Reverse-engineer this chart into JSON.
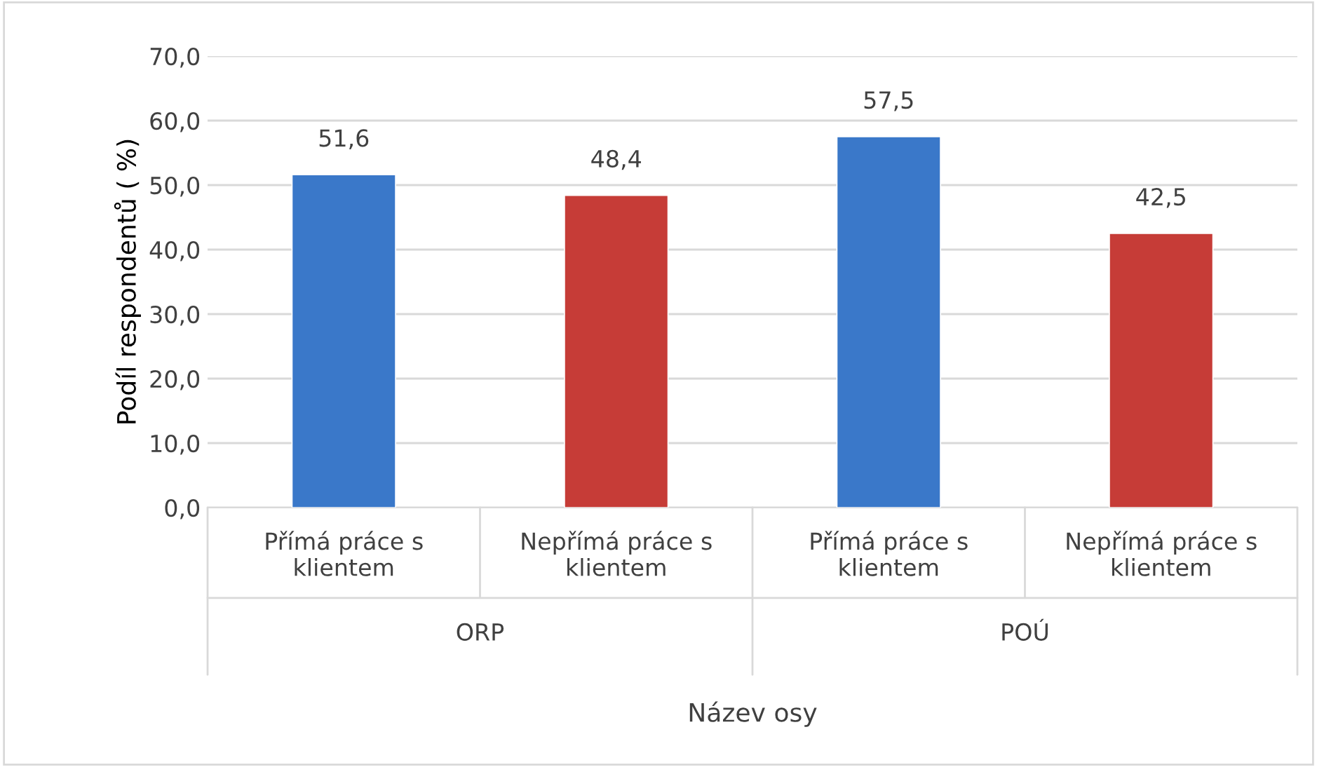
{
  "chart_data": {
    "type": "bar",
    "categories": [
      "Přímá práce s\nklientem",
      "Nepřímá práce s\nklientem",
      "Přímá práce s\nklientem",
      "Nepřímá práce s\nklientem"
    ],
    "values": [
      51.6,
      48.4,
      57.5,
      42.5
    ],
    "colors": [
      "#3a78c9",
      "#c63c37",
      "#3a78c9",
      "#c63c37"
    ],
    "value_labels": [
      "51,6",
      "48,4",
      "57,5",
      "42,5"
    ],
    "annotations": [
      "ORP",
      "POÚ"
    ],
    "xlabel": "Název osy",
    "ylabel": "Podíl respondentů ( %)",
    "ylim": [
      0,
      70
    ],
    "yticks": [
      {
        "value": 0,
        "label": "0,0"
      },
      {
        "value": 10,
        "label": "10,0"
      },
      {
        "value": 20,
        "label": "20,0"
      },
      {
        "value": 30,
        "label": "30,0"
      },
      {
        "value": 40,
        "label": "40,0"
      },
      {
        "value": 50,
        "label": "50,0"
      },
      {
        "value": 60,
        "label": "60,0"
      },
      {
        "value": 70,
        "label": "70,0"
      }
    ],
    "grid": "y",
    "legend": false
  }
}
